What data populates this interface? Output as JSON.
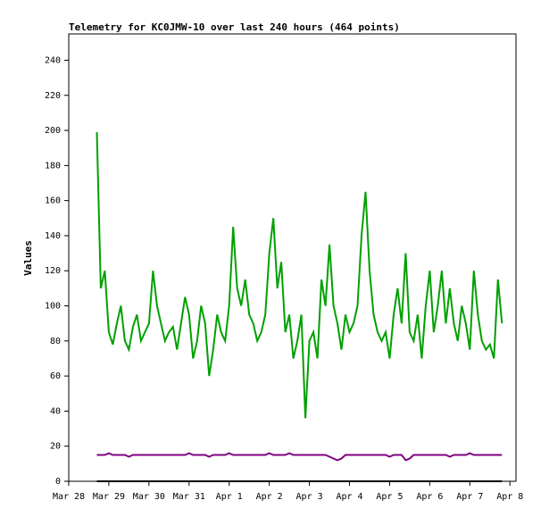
{
  "chart_data": {
    "type": "line",
    "title": "Telemetry for KC0JMW-10 over last 240 hours (464 points)",
    "y_label": "Values",
    "x": [
      0.7,
      0.8,
      0.9,
      1.0,
      1.1,
      1.2,
      1.3,
      1.4,
      1.5,
      1.6,
      1.7,
      1.8,
      1.9,
      2.0,
      2.1,
      2.2,
      2.3,
      2.4,
      2.5,
      2.6,
      2.7,
      2.8,
      2.9,
      3.0,
      3.1,
      3.2,
      3.3,
      3.4,
      3.5,
      3.6,
      3.7,
      3.8,
      3.9,
      4.0,
      4.1,
      4.2,
      4.3,
      4.4,
      4.5,
      4.6,
      4.7,
      4.8,
      4.9,
      5.0,
      5.1,
      5.2,
      5.3,
      5.4,
      5.5,
      5.6,
      5.7,
      5.8,
      5.9,
      6.0,
      6.1,
      6.2,
      6.3,
      6.4,
      6.5,
      6.6,
      6.7,
      6.8,
      6.9,
      7.0,
      7.1,
      7.2,
      7.3,
      7.4,
      7.5,
      7.6,
      7.7,
      7.8,
      7.9,
      8.0,
      8.1,
      8.2,
      8.3,
      8.4,
      8.5,
      8.6,
      8.7,
      8.8,
      8.9,
      9.0,
      9.1,
      9.2,
      9.3,
      9.4,
      9.5,
      9.6,
      9.7,
      9.8,
      9.9,
      10.0,
      10.1,
      10.2,
      10.3,
      10.4,
      10.5,
      10.6,
      10.7,
      10.8
    ],
    "xlim": [
      0,
      11.15
    ],
    "xticks": [
      {
        "value": 0,
        "label": "Mar 28"
      },
      {
        "value": 1,
        "label": "Mar 29"
      },
      {
        "value": 2,
        "label": "Mar 30"
      },
      {
        "value": 3,
        "label": "Mar 31"
      },
      {
        "value": 4,
        "label": "Apr 1"
      },
      {
        "value": 5,
        "label": "Apr 2"
      },
      {
        "value": 6,
        "label": "Apr 3"
      },
      {
        "value": 7,
        "label": "Apr 4"
      },
      {
        "value": 8,
        "label": "Apr 5"
      },
      {
        "value": 9,
        "label": "Apr 6"
      },
      {
        "value": 10,
        "label": "Apr 7"
      },
      {
        "value": 11,
        "label": "Apr 8"
      }
    ],
    "ylim": [
      0,
      255
    ],
    "yticks": [
      0,
      20,
      40,
      60,
      80,
      100,
      120,
      140,
      160,
      180,
      200,
      220,
      240
    ],
    "series": [
      {
        "color": "#00a000",
        "values": [
          199,
          110,
          120,
          85,
          78,
          90,
          100,
          80,
          75,
          88,
          95,
          80,
          85,
          90,
          120,
          100,
          90,
          80,
          85,
          88,
          75,
          90,
          105,
          95,
          70,
          80,
          100,
          90,
          60,
          75,
          95,
          85,
          80,
          100,
          145,
          110,
          100,
          115,
          95,
          90,
          80,
          85,
          95,
          130,
          150,
          110,
          125,
          85,
          95,
          70,
          80,
          95,
          36,
          80,
          85,
          70,
          115,
          100,
          135,
          100,
          90,
          75,
          95,
          85,
          90,
          100,
          140,
          165,
          120,
          95,
          85,
          80,
          85,
          70,
          95,
          110,
          90,
          130,
          85,
          80,
          95,
          70,
          100,
          120,
          85,
          100,
          120,
          90,
          110,
          90,
          80,
          100,
          90,
          75,
          120,
          95,
          80,
          75,
          78,
          70,
          115,
          90
        ]
      },
      {
        "color": "#800080",
        "values": [
          15,
          15,
          15,
          16,
          15,
          15,
          15,
          15,
          14,
          15,
          15,
          15,
          15,
          15,
          15,
          15,
          15,
          15,
          15,
          15,
          15,
          15,
          15,
          16,
          15,
          15,
          15,
          15,
          14,
          15,
          15,
          15,
          15,
          16,
          15,
          15,
          15,
          15,
          15,
          15,
          15,
          15,
          15,
          16,
          15,
          15,
          15,
          15,
          16,
          15,
          15,
          15,
          15,
          15,
          15,
          15,
          15,
          15,
          14,
          13,
          12,
          13,
          15,
          15,
          15,
          15,
          15,
          15,
          15,
          15,
          15,
          15,
          15,
          14,
          15,
          15,
          15,
          12,
          13,
          15,
          15,
          15,
          15,
          15,
          15,
          15,
          15,
          15,
          14,
          15,
          15,
          15,
          15,
          16,
          15,
          15,
          15,
          15,
          15,
          15,
          15,
          15
        ]
      },
      {
        "color": "#000000",
        "values": [
          0,
          0,
          0,
          0,
          0,
          0,
          0,
          0,
          0,
          0,
          0,
          0,
          0,
          0,
          0,
          0,
          0,
          0,
          0,
          0,
          0,
          0,
          0,
          0,
          0,
          0,
          0,
          0,
          0,
          0,
          0,
          0,
          0,
          0,
          0,
          0,
          0,
          0,
          0,
          0,
          0,
          0,
          0,
          0,
          0,
          0,
          0,
          0,
          0,
          0,
          0,
          0,
          0,
          0,
          0,
          0,
          0,
          0,
          0,
          0,
          0,
          0,
          0,
          0,
          0,
          0,
          0,
          0,
          0,
          0,
          0,
          0,
          0,
          0,
          0,
          0,
          0,
          0,
          0,
          0,
          0,
          0,
          0,
          0,
          0,
          0,
          0,
          0,
          0,
          0,
          0,
          0,
          0,
          0,
          0,
          0,
          0,
          0,
          0,
          0,
          0,
          0
        ]
      }
    ]
  }
}
